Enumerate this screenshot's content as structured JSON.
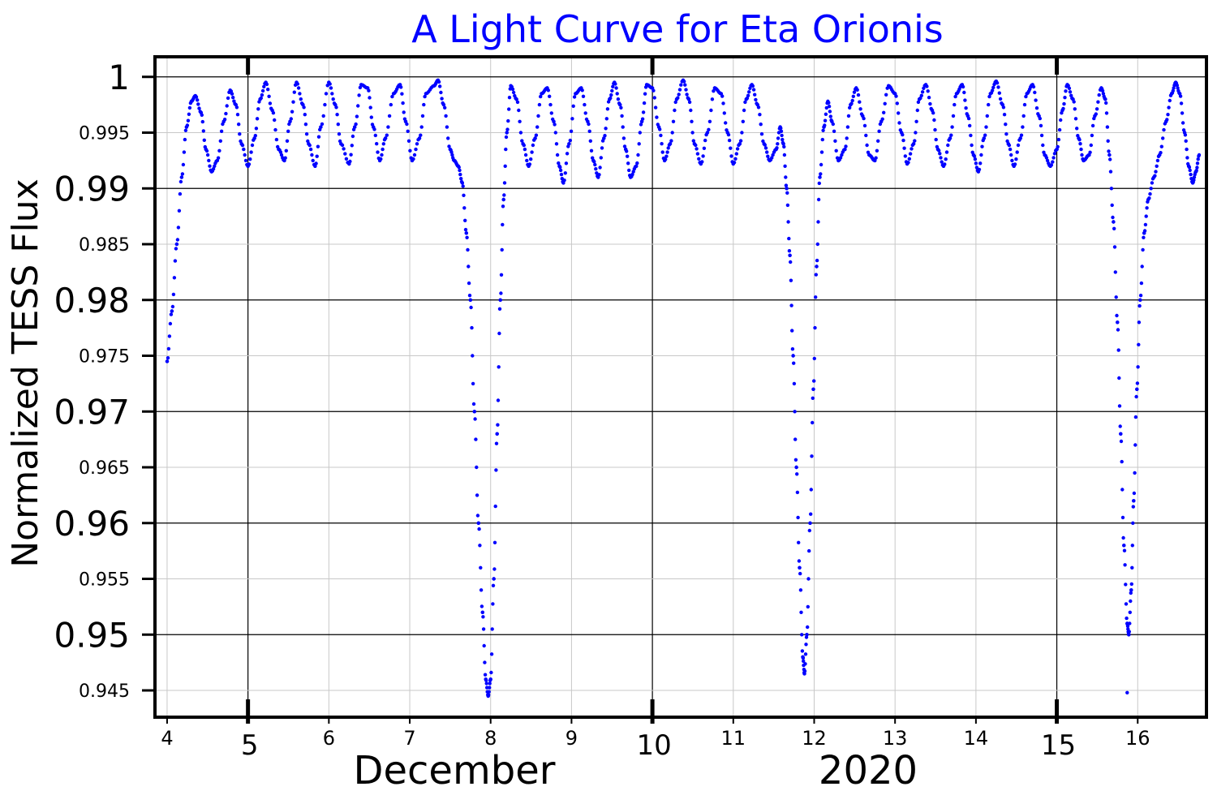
{
  "chart_data": {
    "type": "scatter",
    "title": "A Light Curve for Eta Orionis",
    "xlabel_left": "December",
    "xlabel_right": "2020",
    "ylabel": "Normalized TESS Flux",
    "xlim": [
      3.85,
      16.85
    ],
    "ylim": [
      0.9426,
      1.0018
    ],
    "x_major_ticks": [
      "5",
      "10",
      "15"
    ],
    "x_minor_ticks": [
      "4",
      "6",
      "7",
      "8",
      "9",
      "11",
      "12",
      "13",
      "14",
      "16"
    ],
    "y_major_ticks": [
      "1",
      "0.99",
      "0.98",
      "0.97",
      "0.96",
      "0.95"
    ],
    "y_minor_ticks": [
      "0.995",
      "0.985",
      "0.975",
      "0.965",
      "0.955",
      "0.945"
    ],
    "grid": true,
    "series": [
      {
        "color": "#0000ff",
        "marker": "dot",
        "points": [
          [
            4.0,
            0.9745
          ],
          [
            4.06,
            0.979
          ],
          [
            4.12,
            0.985
          ],
          [
            4.18,
            0.991
          ],
          [
            4.24,
            0.9955
          ],
          [
            4.3,
            0.9978
          ],
          [
            4.35,
            0.9983
          ],
          [
            4.42,
            0.9968
          ],
          [
            4.48,
            0.9935
          ],
          [
            4.55,
            0.9915
          ],
          [
            4.62,
            0.9925
          ],
          [
            4.7,
            0.996
          ],
          [
            4.78,
            0.9988
          ],
          [
            4.85,
            0.9975
          ],
          [
            4.92,
            0.994
          ],
          [
            5.0,
            0.992
          ],
          [
            5.08,
            0.9945
          ],
          [
            5.15,
            0.998
          ],
          [
            5.22,
            0.9995
          ],
          [
            5.3,
            0.997
          ],
          [
            5.38,
            0.9935
          ],
          [
            5.45,
            0.9925
          ],
          [
            5.52,
            0.996
          ],
          [
            5.6,
            0.9995
          ],
          [
            5.68,
            0.9975
          ],
          [
            5.75,
            0.994
          ],
          [
            5.83,
            0.992
          ],
          [
            5.9,
            0.9955
          ],
          [
            6.0,
            0.9995
          ],
          [
            6.08,
            0.9975
          ],
          [
            6.15,
            0.994
          ],
          [
            6.25,
            0.9922
          ],
          [
            6.32,
            0.9955
          ],
          [
            6.4,
            0.9993
          ],
          [
            6.48,
            0.999
          ],
          [
            6.55,
            0.9955
          ],
          [
            6.63,
            0.9925
          ],
          [
            6.7,
            0.9945
          ],
          [
            6.8,
            0.9985
          ],
          [
            6.88,
            0.9993
          ],
          [
            6.95,
            0.996
          ],
          [
            7.03,
            0.9925
          ],
          [
            7.12,
            0.9945
          ],
          [
            7.2,
            0.9985
          ],
          [
            7.3,
            0.9992
          ],
          [
            7.35,
            0.9997
          ],
          [
            7.42,
            0.9975
          ],
          [
            7.5,
            0.9935
          ],
          [
            7.55,
            0.9925
          ],
          [
            7.6,
            0.992
          ],
          [
            7.65,
            0.9905
          ],
          [
            7.7,
            0.986
          ],
          [
            7.75,
            0.98
          ],
          [
            7.8,
            0.97
          ],
          [
            7.85,
            0.96
          ],
          [
            7.9,
            0.952
          ],
          [
            7.94,
            0.946
          ],
          [
            7.97,
            0.9445
          ],
          [
            8.0,
            0.946
          ],
          [
            8.04,
            0.955
          ],
          [
            8.08,
            0.968
          ],
          [
            8.12,
            0.98
          ],
          [
            8.16,
            0.989
          ],
          [
            8.2,
            0.995
          ],
          [
            8.25,
            0.9992
          ],
          [
            8.32,
            0.998
          ],
          [
            8.4,
            0.994
          ],
          [
            8.47,
            0.992
          ],
          [
            8.55,
            0.9945
          ],
          [
            8.63,
            0.9985
          ],
          [
            8.7,
            0.999
          ],
          [
            8.78,
            0.996
          ],
          [
            8.85,
            0.992
          ],
          [
            8.9,
            0.9905
          ],
          [
            8.97,
            0.994
          ],
          [
            9.05,
            0.9985
          ],
          [
            9.12,
            0.999
          ],
          [
            9.2,
            0.996
          ],
          [
            9.27,
            0.9925
          ],
          [
            9.33,
            0.991
          ],
          [
            9.4,
            0.9945
          ],
          [
            9.47,
            0.998
          ],
          [
            9.53,
            0.9995
          ],
          [
            9.6,
            0.9975
          ],
          [
            9.67,
            0.9935
          ],
          [
            9.73,
            0.991
          ],
          [
            9.8,
            0.992
          ],
          [
            9.87,
            0.996
          ],
          [
            9.93,
            0.9993
          ],
          [
            10.0,
            0.999
          ],
          [
            10.08,
            0.9955
          ],
          [
            10.15,
            0.9925
          ],
          [
            10.22,
            0.994
          ],
          [
            10.3,
            0.998
          ],
          [
            10.38,
            0.9997
          ],
          [
            10.45,
            0.998
          ],
          [
            10.52,
            0.994
          ],
          [
            10.6,
            0.9922
          ],
          [
            10.68,
            0.995
          ],
          [
            10.77,
            0.999
          ],
          [
            10.85,
            0.9985
          ],
          [
            10.93,
            0.995
          ],
          [
            11.0,
            0.9922
          ],
          [
            11.08,
            0.994
          ],
          [
            11.16,
            0.998
          ],
          [
            11.23,
            0.9993
          ],
          [
            11.3,
            0.9975
          ],
          [
            11.38,
            0.994
          ],
          [
            11.45,
            0.9925
          ],
          [
            11.53,
            0.9935
          ],
          [
            11.58,
            0.9955
          ],
          [
            11.62,
            0.994
          ],
          [
            11.66,
            0.99
          ],
          [
            11.7,
            0.984
          ],
          [
            11.74,
            0.975
          ],
          [
            11.78,
            0.965
          ],
          [
            11.82,
            0.956
          ],
          [
            11.86,
            0.948
          ],
          [
            11.88,
            0.9465
          ],
          [
            11.91,
            0.95
          ],
          [
            11.95,
            0.96
          ],
          [
            11.99,
            0.972
          ],
          [
            12.03,
            0.983
          ],
          [
            12.07,
            0.991
          ],
          [
            12.12,
            0.9955
          ],
          [
            12.17,
            0.9978
          ],
          [
            12.22,
            0.996
          ],
          [
            12.3,
            0.9925
          ],
          [
            12.38,
            0.9935
          ],
          [
            12.45,
            0.9975
          ],
          [
            12.52,
            0.999
          ],
          [
            12.6,
            0.9965
          ],
          [
            12.68,
            0.993
          ],
          [
            12.75,
            0.9925
          ],
          [
            12.83,
            0.996
          ],
          [
            12.92,
            0.9992
          ],
          [
            13.0,
            0.9985
          ],
          [
            13.08,
            0.995
          ],
          [
            13.15,
            0.9922
          ],
          [
            13.23,
            0.994
          ],
          [
            13.3,
            0.998
          ],
          [
            13.38,
            0.9993
          ],
          [
            13.46,
            0.997
          ],
          [
            13.53,
            0.9935
          ],
          [
            13.6,
            0.992
          ],
          [
            13.68,
            0.9945
          ],
          [
            13.76,
            0.9985
          ],
          [
            13.83,
            0.9993
          ],
          [
            13.9,
            0.9965
          ],
          [
            13.97,
            0.993
          ],
          [
            14.03,
            0.9915
          ],
          [
            14.1,
            0.9945
          ],
          [
            14.18,
            0.9985
          ],
          [
            14.25,
            0.9996
          ],
          [
            14.33,
            0.9975
          ],
          [
            14.4,
            0.994
          ],
          [
            14.47,
            0.992
          ],
          [
            14.55,
            0.9945
          ],
          [
            14.63,
            0.9985
          ],
          [
            14.7,
            0.9993
          ],
          [
            14.78,
            0.9965
          ],
          [
            14.85,
            0.993
          ],
          [
            14.92,
            0.992
          ],
          [
            15.0,
            0.9935
          ],
          [
            15.07,
            0.997
          ],
          [
            15.13,
            0.9993
          ],
          [
            15.2,
            0.998
          ],
          [
            15.27,
            0.9945
          ],
          [
            15.33,
            0.9925
          ],
          [
            15.4,
            0.993
          ],
          [
            15.47,
            0.9965
          ],
          [
            15.55,
            0.999
          ],
          [
            15.6,
            0.998
          ],
          [
            15.65,
            0.993
          ],
          [
            15.7,
            0.987
          ],
          [
            15.75,
            0.978
          ],
          [
            15.79,
            0.968
          ],
          [
            15.83,
            0.958
          ],
          [
            15.87,
            0.951
          ],
          [
            15.89,
            0.95
          ],
          [
            15.92,
            0.954
          ],
          [
            15.95,
            0.962
          ],
          [
            15.99,
            0.972
          ],
          [
            16.03,
            0.98
          ],
          [
            16.08,
            0.986
          ],
          [
            16.13,
            0.989
          ],
          [
            16.2,
            0.991
          ],
          [
            16.27,
            0.993
          ],
          [
            16.35,
            0.996
          ],
          [
            16.42,
            0.9985
          ],
          [
            16.47,
            0.9995
          ],
          [
            16.52,
            0.9985
          ],
          [
            16.58,
            0.995
          ],
          [
            16.63,
            0.992
          ],
          [
            16.68,
            0.9905
          ],
          [
            16.72,
            0.9915
          ],
          [
            16.76,
            0.993
          ],
          [
            15.87,
            0.9448
          ]
        ]
      }
    ]
  }
}
